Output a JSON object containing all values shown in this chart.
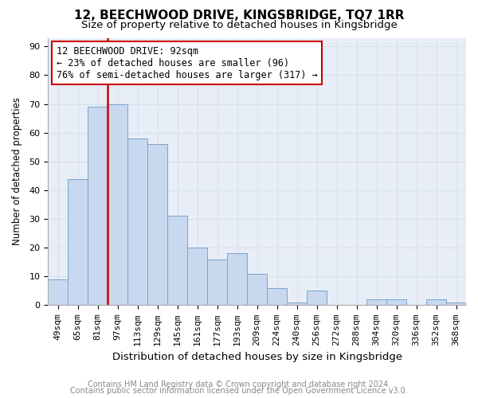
{
  "title1": "12, BEECHWOOD DRIVE, KINGSBRIDGE, TQ7 1RR",
  "title2": "Size of property relative to detached houses in Kingsbridge",
  "xlabel": "Distribution of detached houses by size in Kingsbridge",
  "ylabel": "Number of detached properties",
  "categories": [
    "49sqm",
    "65sqm",
    "81sqm",
    "97sqm",
    "113sqm",
    "129sqm",
    "145sqm",
    "161sqm",
    "177sqm",
    "193sqm",
    "209sqm",
    "224sqm",
    "240sqm",
    "256sqm",
    "272sqm",
    "288sqm",
    "304sqm",
    "320sqm",
    "336sqm",
    "352sqm",
    "368sqm"
  ],
  "values": [
    9,
    44,
    69,
    70,
    58,
    56,
    31,
    20,
    16,
    18,
    11,
    6,
    1,
    5,
    0,
    0,
    2,
    2,
    0,
    2,
    1
  ],
  "bar_color": "#c8d8ee",
  "bar_edge_color": "#7aA4cc",
  "vline_color": "#cc0000",
  "annotation_box_text": "12 BEECHWOOD DRIVE: 92sqm\n← 23% of detached houses are smaller (96)\n76% of semi-detached houses are larger (317) →",
  "annotation_box_color": "#cc0000",
  "annotation_box_fill": "#ffffff",
  "ylim": [
    0,
    93
  ],
  "yticks": [
    0,
    10,
    20,
    30,
    40,
    50,
    60,
    70,
    80,
    90
  ],
  "grid_color": "#d8e0ec",
  "footnote1": "Contains HM Land Registry data © Crown copyright and database right 2024.",
  "footnote2": "Contains public sector information licensed under the Open Government Licence v3.0.",
  "background_color": "#ffffff",
  "plot_bg_color": "#e8eef8",
  "title1_fontsize": 11,
  "title2_fontsize": 9.5,
  "xlabel_fontsize": 9.5,
  "ylabel_fontsize": 8.5,
  "tick_fontsize": 8,
  "footnote_fontsize": 7,
  "annotation_fontsize": 8.5
}
